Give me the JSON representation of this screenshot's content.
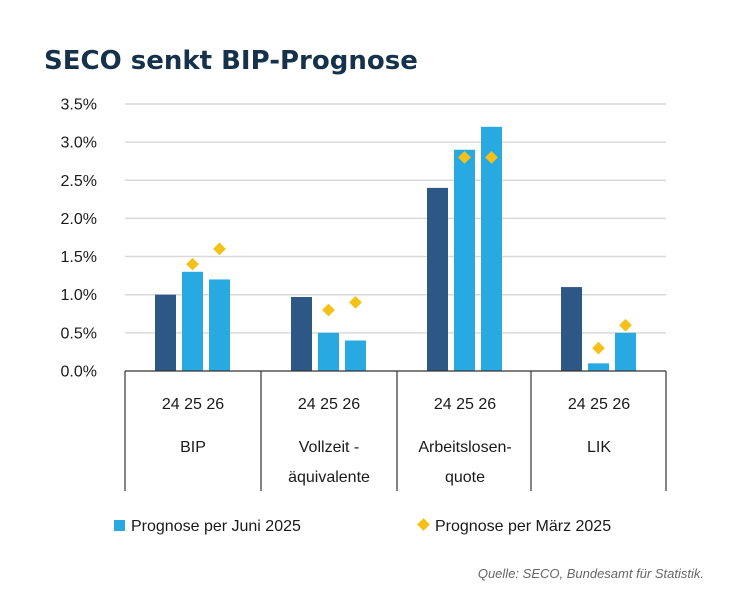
{
  "chart_data": {
    "type": "bar",
    "title": "SECO senkt BIP-Prognose",
    "y_ticks": [
      "3.5%",
      "3.0%",
      "2.5%",
      "2.0%",
      "1.5%",
      "1.0%",
      "0.5%",
      "0.0%"
    ],
    "ylim": [
      0,
      3.5
    ],
    "year_labels": [
      "24",
      "25",
      "26"
    ],
    "groups": [
      {
        "name_lines": [
          "BIP"
        ],
        "values": [
          1.0,
          1.3,
          1.2
        ],
        "maerz": [
          null,
          1.4,
          1.6
        ]
      },
      {
        "name_lines": [
          "Vollzeit -",
          "äquivalente"
        ],
        "values": [
          0.97,
          0.5,
          0.4
        ],
        "maerz": [
          null,
          0.8,
          0.9
        ]
      },
      {
        "name_lines": [
          "Arbeitslosen-",
          "quote"
        ],
        "values": [
          2.4,
          2.9,
          3.2
        ],
        "maerz": [
          null,
          2.8,
          2.8
        ]
      },
      {
        "name_lines": [
          "LIK"
        ],
        "values": [
          1.1,
          0.1,
          0.5
        ],
        "maerz": [
          null,
          0.3,
          0.6
        ]
      }
    ],
    "legend": {
      "juni": "Prognose per Juni 2025",
      "maerz": "Prognose per März 2025"
    },
    "source": "Quelle: SECO, Bundesamt für Statistik.",
    "colors": {
      "actual": "#2d5886",
      "juni": "#29a9e1",
      "maerz": "#f5c118",
      "title": "#16324a"
    }
  }
}
